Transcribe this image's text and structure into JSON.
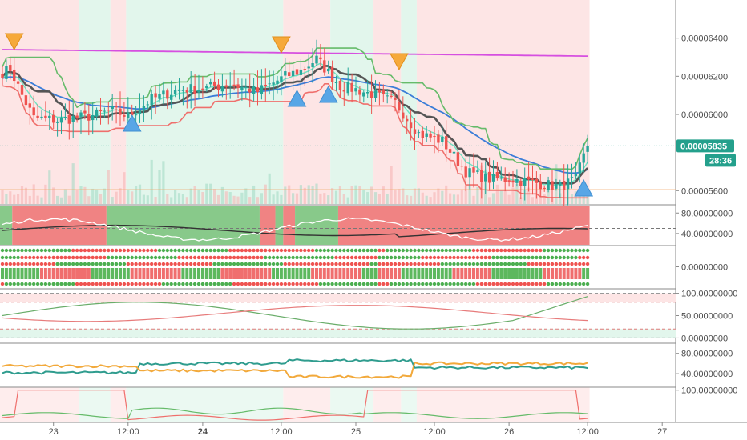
{
  "chart_data": {
    "type": "candlestick",
    "main": {
      "y_ticks": [
        "0.00006400",
        "0.00006200",
        "0.00006000",
        "0.00005600"
      ],
      "y_tick_values": [
        6.4e-05,
        6.2e-05,
        6e-05,
        5.6e-05
      ],
      "ylim": [
        5.53e-05,
        6.6e-05
      ],
      "last_price_label": "0.00005835",
      "last_price": 5.835e-05,
      "countdown_label": "28:36",
      "series_colors": {
        "up": "#26a69a",
        "down": "#ef5350",
        "sma200": "#d64fe0",
        "ema50": "#3b7dd8",
        "baseline": "#555555",
        "band_upper": "#66bb6a",
        "band_lower": "#ef6f6c",
        "fast": "#6ee2c2"
      }
    },
    "panes": [
      {
        "ticks": [
          "80.00000000",
          "40.00000000"
        ],
        "tick_values": [
          80,
          40
        ],
        "range": [
          18,
          96
        ]
      },
      {
        "ticks": [
          "0.00000000"
        ],
        "tick_values": [
          0
        ],
        "range": [
          -1,
          1
        ]
      },
      {
        "ticks": [
          "100.00000000",
          "50.00000000",
          "0.00000000"
        ],
        "tick_values": [
          100,
          50,
          0
        ],
        "range": [
          -10,
          110
        ]
      },
      {
        "ticks": [
          "80.00000000",
          "40.00000000"
        ],
        "tick_values": [
          80,
          40
        ],
        "range": [
          15,
          100
        ]
      },
      {
        "ticks": [
          "100.00000000"
        ],
        "tick_values": [
          100
        ],
        "range": [
          -5,
          110
        ]
      }
    ],
    "x_ticks": [
      {
        "label": "23",
        "bold": false
      },
      {
        "label": "12:00",
        "bold": false
      },
      {
        "label": "24",
        "bold": true
      },
      {
        "label": "12:00",
        "bold": false
      },
      {
        "label": "25",
        "bold": false
      },
      {
        "label": "12:00",
        "bold": false
      },
      {
        "label": "26",
        "bold": false
      },
      {
        "label": "12:00",
        "bold": false
      },
      {
        "label": "27",
        "bold": false
      }
    ]
  }
}
